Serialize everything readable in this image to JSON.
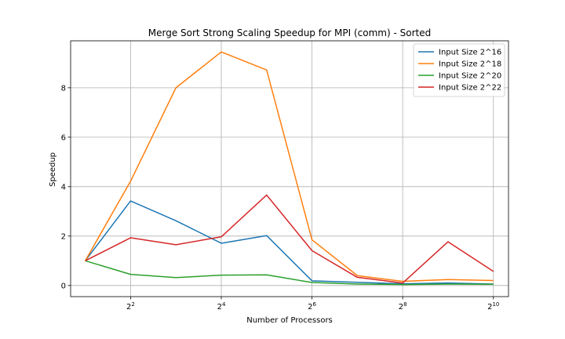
{
  "chart_data": {
    "type": "line",
    "title": "Merge Sort Strong Scaling Speedup for MPI (comm) - Sorted",
    "xlabel": "Number of Processors",
    "ylabel": "Speedup",
    "x_scale": "log2",
    "x": [
      2,
      4,
      8,
      16,
      32,
      64,
      128,
      256,
      512,
      1024
    ],
    "xlim": [
      1.6,
      1290
    ],
    "ylim": [
      -0.45,
      9.9
    ],
    "x_ticks": [
      {
        "value": 4,
        "base": "2",
        "exp": "2"
      },
      {
        "value": 16,
        "base": "2",
        "exp": "4"
      },
      {
        "value": 64,
        "base": "2",
        "exp": "6"
      },
      {
        "value": 256,
        "base": "2",
        "exp": "8"
      },
      {
        "value": 1024,
        "base": "2",
        "exp": "10"
      }
    ],
    "y_ticks": [
      {
        "value": 0,
        "label": "0"
      },
      {
        "value": 2,
        "label": "2"
      },
      {
        "value": 4,
        "label": "4"
      },
      {
        "value": 6,
        "label": "6"
      },
      {
        "value": 8,
        "label": "8"
      }
    ],
    "grid": true,
    "legend_position": "top-right",
    "series": [
      {
        "name": "Input Size 2^16",
        "color": "#1f77b4",
        "values": [
          1.0,
          3.42,
          2.62,
          1.71,
          2.02,
          0.19,
          0.13,
          0.07,
          0.1,
          0.06
        ]
      },
      {
        "name": "Input Size 2^18",
        "color": "#ff7f0e",
        "values": [
          1.0,
          4.22,
          8.0,
          9.45,
          8.72,
          1.85,
          0.4,
          0.17,
          0.24,
          0.2
        ]
      },
      {
        "name": "Input Size 2^20",
        "color": "#2ca02c",
        "values": [
          1.0,
          0.45,
          0.32,
          0.42,
          0.43,
          0.12,
          0.06,
          0.04,
          0.06,
          0.05
        ]
      },
      {
        "name": "Input Size 2^22",
        "color": "#d62728",
        "values": [
          1.0,
          1.93,
          1.65,
          1.97,
          3.66,
          1.41,
          0.33,
          0.1,
          1.77,
          0.57
        ]
      }
    ]
  }
}
